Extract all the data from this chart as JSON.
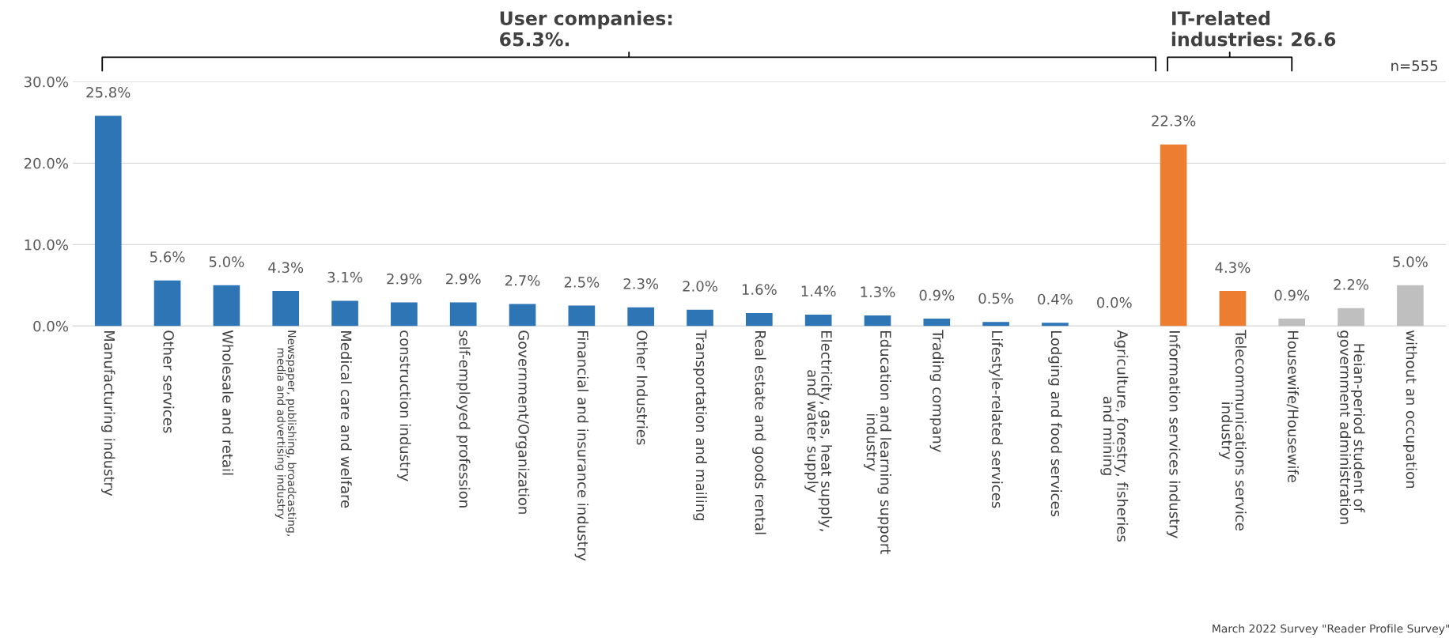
{
  "chart_data": {
    "type": "bar",
    "categories": [
      "Manufacturing industry",
      "Other services",
      "Wholesale and retail",
      "Newspaper, publishing, broadcasting,\nmedia and advertising industry",
      "Medical care and welfare",
      "construction industry",
      "self-employed profession",
      "Government/Organization",
      "Financial and insurance industry",
      "Other Industries",
      "Transportation and mailing",
      "Real estate and goods rental",
      "Electricity, gas, heat supply,\nand water supply",
      "Education and learning support\nindustry",
      "Trading company",
      "Lifestyle-related services",
      "Lodging and food services",
      "Agriculture, forestry, fisheries\nand mining",
      "Information services industry",
      "Telecommunications service\nindustry",
      "Housewife/Housewife",
      "Heian-period student of\ngovernment administration",
      "without an occupation"
    ],
    "values": [
      25.8,
      5.6,
      5.0,
      4.3,
      3.1,
      2.9,
      2.9,
      2.7,
      2.5,
      2.3,
      2.0,
      1.6,
      1.4,
      1.3,
      0.9,
      0.5,
      0.4,
      0.0,
      22.3,
      4.3,
      0.9,
      2.2,
      5.0
    ],
    "value_labels": [
      "25.8%",
      "5.6%",
      "5.0%",
      "4.3%",
      "3.1%",
      "2.9%",
      "2.9%",
      "2.7%",
      "2.5%",
      "2.3%",
      "2.0%",
      "1.6%",
      "1.4%",
      "1.3%",
      "0.9%",
      "0.5%",
      "0.4%",
      "0.0%",
      "22.3%",
      "4.3%",
      "0.9%",
      "2.2%",
      "5.0%"
    ],
    "colors": [
      "#2e75b6",
      "#2e75b6",
      "#2e75b6",
      "#2e75b6",
      "#2e75b6",
      "#2e75b6",
      "#2e75b6",
      "#2e75b6",
      "#2e75b6",
      "#2e75b6",
      "#2e75b6",
      "#2e75b6",
      "#2e75b6",
      "#2e75b6",
      "#2e75b6",
      "#2e75b6",
      "#2e75b6",
      "#2e75b6",
      "#ed7d31",
      "#ed7d31",
      "#bfbfbf",
      "#bfbfbf",
      "#bfbfbf"
    ],
    "ylim": [
      0,
      30
    ],
    "yticks": [
      {
        "value": 0,
        "label": "0.0%"
      },
      {
        "value": 10,
        "label": "10.0%"
      },
      {
        "value": 20,
        "label": "20.0%"
      },
      {
        "value": 30,
        "label": "30.0%"
      }
    ],
    "grid": "y",
    "annotations": [
      "User companies:\n65.3%.",
      "IT-related\nindustries: 26.6",
      "n=555",
      "March 2022 Survey \"Reader Profile Survey\""
    ]
  }
}
